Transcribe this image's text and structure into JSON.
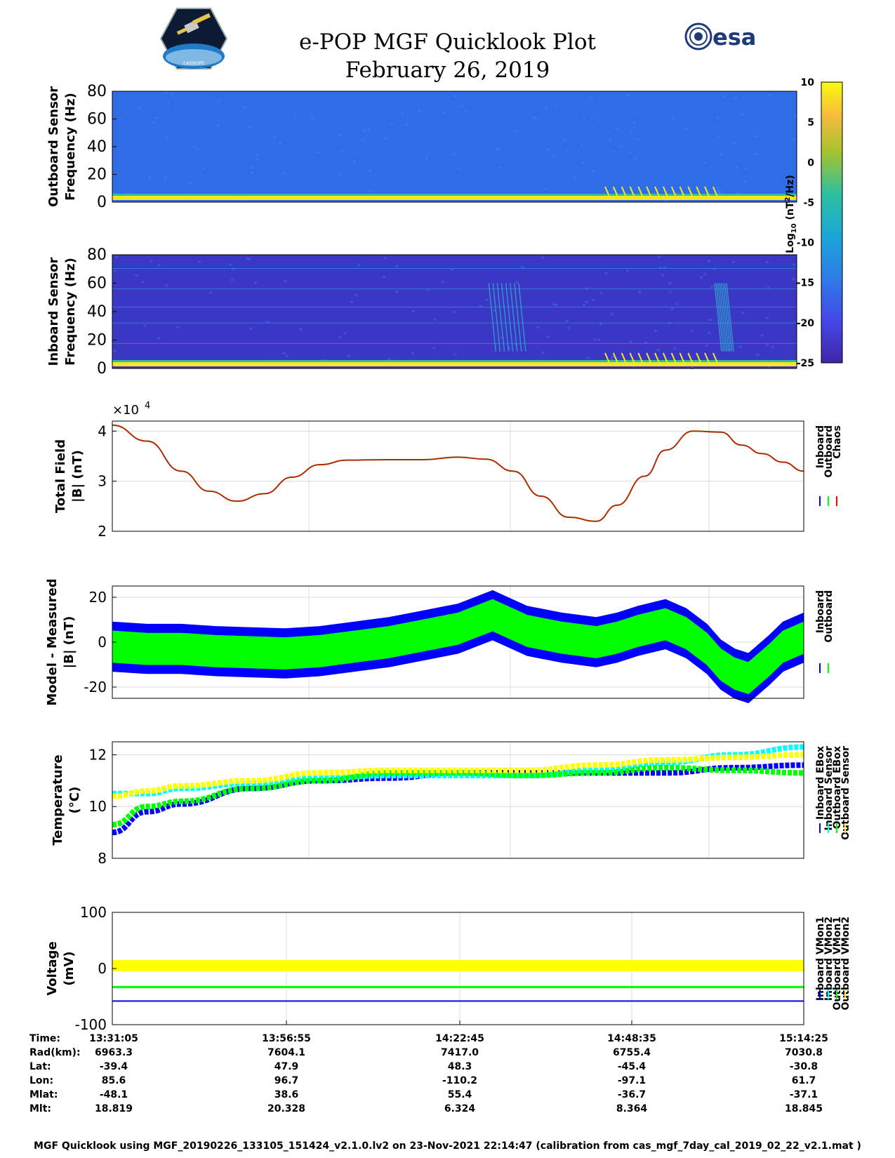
{
  "title": "e-POP MGF Quicklook Plot",
  "date": "February 26, 2019",
  "logo_left_text": "CASSIOPE",
  "logo_right_text": "esa",
  "colors": {
    "spec_low": "#3b2fb3",
    "spec_mid": "#2f6fe6",
    "spec_high": "#f8e620",
    "inboard": "#0000ff",
    "outboard": "#00ff00",
    "chaos": "#ff0000",
    "cyan": "#00ffff",
    "yellow": "#ffff00"
  },
  "chart_data": [
    {
      "type": "heatmap",
      "name": "outboard-spectrogram",
      "ylabel_line1": "Outboard Sensor",
      "ylabel_line2": "Frequency (Hz)",
      "ylim": [
        0,
        80
      ],
      "yticks": [
        "0",
        "20",
        "40",
        "60",
        "80"
      ],
      "colorbar": {
        "label": "Log10 (nT2/Hz)",
        "label_main": "Log",
        "label_sub": "10",
        "label_unit": " (nT",
        "label_sup": "2",
        "label_end": "/Hz)",
        "range": [
          -25,
          10
        ],
        "ticks": [
          "10",
          "5",
          "0",
          "-5",
          "-10",
          "-15",
          "-20",
          "-25"
        ]
      }
    },
    {
      "type": "heatmap",
      "name": "inboard-spectrogram",
      "ylabel_line1": "Inboard Sensor",
      "ylabel_line2": "Frequency (Hz)",
      "ylim": [
        0,
        80
      ],
      "yticks": [
        "0",
        "20",
        "40",
        "60",
        "80"
      ]
    },
    {
      "type": "line",
      "name": "total-field",
      "ylabel_line1": "Total Field",
      "ylabel_line2": "|B| (nT)",
      "exponent_prefix": "×10",
      "exponent_power": "4",
      "ylim": [
        2,
        4.2
      ],
      "yticks": [
        "2",
        "3",
        "4"
      ],
      "legend": [
        "Inboard",
        "Outboard",
        "Chaos"
      ],
      "x": [
        0,
        0.05,
        0.1,
        0.14,
        0.18,
        0.22,
        0.26,
        0.3,
        0.34,
        0.4,
        0.45,
        0.5,
        0.54,
        0.58,
        0.62,
        0.66,
        0.7,
        0.73,
        0.77,
        0.8,
        0.84,
        0.88,
        0.91,
        0.94,
        0.97,
        1.0
      ],
      "series": [
        {
          "name": "Chaos",
          "values": [
            4.12,
            3.8,
            3.2,
            2.8,
            2.6,
            2.75,
            3.08,
            3.33,
            3.42,
            3.43,
            3.43,
            3.48,
            3.44,
            3.2,
            2.7,
            2.28,
            2.2,
            2.52,
            3.1,
            3.62,
            4.0,
            3.98,
            3.72,
            3.55,
            3.38,
            3.2
          ]
        }
      ]
    },
    {
      "type": "area",
      "name": "model-minus-measured",
      "ylabel_line1": "Model - Measured",
      "ylabel_line2": "|B| (nT)",
      "ylim": [
        -25,
        25
      ],
      "yticks": [
        "-20",
        "0",
        "20"
      ],
      "legend": [
        "Inboard",
        "Outboard"
      ],
      "x": [
        0,
        0.05,
        0.1,
        0.15,
        0.2,
        0.25,
        0.3,
        0.35,
        0.4,
        0.45,
        0.5,
        0.55,
        0.6,
        0.65,
        0.7,
        0.73,
        0.76,
        0.8,
        0.83,
        0.86,
        0.88,
        0.9,
        0.92,
        0.95,
        0.97,
        1.0
      ],
      "series": [
        {
          "name": "Inboard",
          "center": [
            -2,
            -3,
            -3,
            -4,
            -4.5,
            -5,
            -4,
            -2,
            0,
            3,
            6,
            12,
            5,
            2,
            0,
            2,
            5,
            8,
            4,
            -3,
            -10,
            -14,
            -16,
            -8,
            -2,
            2
          ],
          "halfwidth": 11
        },
        {
          "name": "Outboard",
          "center": [
            -2,
            -3,
            -3,
            -4,
            -4.5,
            -5,
            -4,
            -2,
            0,
            3,
            6,
            12,
            5,
            2,
            0,
            2,
            5,
            8,
            4,
            -3,
            -10,
            -14,
            -16,
            -8,
            -2,
            2
          ],
          "halfwidth": 7
        }
      ]
    },
    {
      "type": "scatter",
      "name": "temperature",
      "ylabel_line1": "Temperature",
      "ylabel_line2": "(°C)",
      "ylim": [
        8,
        12.5
      ],
      "yticks": [
        "8",
        "10",
        "12"
      ],
      "legend": [
        "Inboard EBox",
        "Inboard Sensor",
        "Outboard EBox",
        "Outboard Sensor"
      ],
      "x": [
        0,
        0.05,
        0.1,
        0.2,
        0.3,
        0.4,
        0.5,
        0.6,
        0.7,
        0.8,
        0.9,
        1.0
      ],
      "series": [
        {
          "name": "Inboard EBox",
          "values": [
            9.0,
            9.8,
            10.1,
            10.7,
            11.0,
            11.1,
            11.3,
            11.3,
            11.3,
            11.3,
            11.5,
            11.6
          ]
        },
        {
          "name": "Inboard Sensor",
          "values": [
            10.5,
            10.5,
            10.7,
            10.9,
            11.1,
            11.2,
            11.2,
            11.2,
            11.4,
            11.7,
            12.0,
            12.3
          ]
        },
        {
          "name": "Outboard EBox",
          "values": [
            9.3,
            10.0,
            10.2,
            10.7,
            11.0,
            11.3,
            11.3,
            11.2,
            11.3,
            11.5,
            11.4,
            11.3
          ]
        },
        {
          "name": "Outboard Sensor",
          "values": [
            10.4,
            10.6,
            10.8,
            11.0,
            11.3,
            11.4,
            11.4,
            11.4,
            11.6,
            11.8,
            11.9,
            12.0
          ]
        }
      ]
    },
    {
      "type": "scatter",
      "name": "voltage",
      "ylabel_line1": "Voltage",
      "ylabel_line2": "(mV)",
      "ylim": [
        -100,
        100
      ],
      "yticks": [
        "-100",
        "0",
        "100"
      ],
      "legend": [
        "Inboard VMon1",
        "Inboard VMon2",
        "Outboard VMon1",
        "Outboard VMon2"
      ],
      "series": [
        {
          "name": "Inboard VMon1",
          "value": -58
        },
        {
          "name": "Inboard VMon2",
          "value": -33
        },
        {
          "name": "Outboard VMon1",
          "value": -33
        },
        {
          "name": "Outboard VMon2",
          "value": 5
        }
      ]
    }
  ],
  "ephemeris": {
    "labels": [
      "Time:",
      "Rad(km):",
      "Lat:",
      "Lon:",
      "Mlat:",
      "Mlt:"
    ],
    "columns": [
      [
        "13:31:05",
        "6963.3",
        "-39.4",
        "85.6",
        "-48.1",
        "18.819"
      ],
      [
        "13:56:55",
        "7604.1",
        "47.9",
        "96.7",
        "38.6",
        "20.328"
      ],
      [
        "14:22:45",
        "7417.0",
        "48.3",
        "-110.2",
        "55.4",
        "6.324"
      ],
      [
        "14:48:35",
        "6755.4",
        "-45.4",
        "-97.1",
        "-36.7",
        "8.364"
      ],
      [
        "15:14:25",
        "7030.8",
        "-30.8",
        "61.7",
        "-37.1",
        "18.845"
      ]
    ]
  },
  "footer": "MGF Quicklook using MGF_20190226_133105_151424_v2.1.0.lv2 on 23-Nov-2021 22:14:47 (calibration from cas_mgf_7day_cal_2019_02_22_v2.1.mat )"
}
